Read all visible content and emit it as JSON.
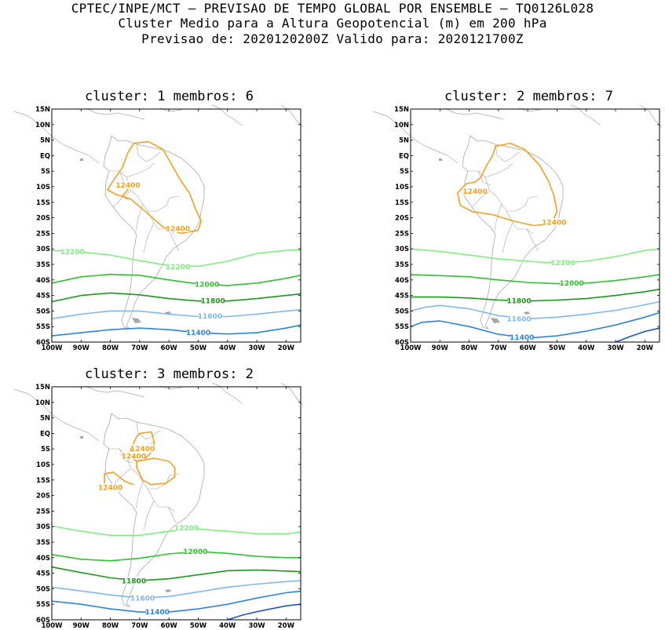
{
  "header": {
    "line1": "CPTEC/INPE/MCT – PREVISAO DE TEMPO GLOBAL POR ENSEMBLE – TQ0126L028",
    "line2": "Cluster Medio para a Altura Geopotencial (m) em 200 hPa",
    "line3": "Previsao de: 2020120200Z   Valido para: 2020121700Z"
  },
  "axes": {
    "lat_labels": [
      "15N",
      "10N",
      "5N",
      "EQ",
      "5S",
      "10S",
      "15S",
      "20S",
      "25S",
      "30S",
      "35S",
      "40S",
      "45S",
      "50S",
      "55S",
      "60S"
    ],
    "lon_labels": [
      "100W",
      "90W",
      "80W",
      "70W",
      "60W",
      "50W",
      "40W",
      "30W",
      "20W"
    ]
  },
  "colors": {
    "c12400": "#f5a020",
    "c12200": "#7ef07e",
    "c12000": "#2ec22e",
    "c11800": "#199a19",
    "c11600": "#7fb8f0",
    "c11400": "#2a84e0",
    "c11200": "#1b56c4",
    "land": "#a8a8a8"
  },
  "panels": [
    {
      "title": "cluster: 1   membros: 6",
      "labels": [
        {
          "text": "12400",
          "lon": -74,
          "lat": -9.5,
          "color": "c12400"
        },
        {
          "text": "12400",
          "lon": -57,
          "lat": -23.5,
          "color": "c12400"
        },
        {
          "text": "12200",
          "lon": -93,
          "lat": -31,
          "color": "c12200"
        },
        {
          "text": "12200",
          "lon": -57,
          "lat": -35.7,
          "color": "c12200"
        },
        {
          "text": "12000",
          "lon": -47,
          "lat": -41.5,
          "color": "c12000"
        },
        {
          "text": "11800",
          "lon": -45,
          "lat": -46.7,
          "color": "c11800"
        },
        {
          "text": "11600",
          "lon": -46,
          "lat": -51.7,
          "color": "c11600"
        },
        {
          "text": "11400",
          "lon": -50,
          "lat": -57,
          "color": "c11400"
        }
      ]
    },
    {
      "title": "cluster: 2   membros: 7",
      "labels": [
        {
          "text": "12400",
          "lon": -78,
          "lat": -11.5,
          "color": "c12400"
        },
        {
          "text": "12400",
          "lon": -51,
          "lat": -21.5,
          "color": "c12400"
        },
        {
          "text": "12200",
          "lon": -48,
          "lat": -34.5,
          "color": "c12200"
        },
        {
          "text": "12000",
          "lon": -45,
          "lat": -41,
          "color": "c12000"
        },
        {
          "text": "11800",
          "lon": -63,
          "lat": -46.7,
          "color": "c11800"
        },
        {
          "text": "11600",
          "lon": -63,
          "lat": -52.5,
          "color": "c11600"
        },
        {
          "text": "11400",
          "lon": -62,
          "lat": -58.5,
          "color": "c11400"
        }
      ]
    },
    {
      "title": "cluster: 3   membros: 2",
      "labels": [
        {
          "text": "12400",
          "lon": -69,
          "lat": -5,
          "color": "c12400"
        },
        {
          "text": "12400",
          "lon": -72,
          "lat": -7.3,
          "color": "c12400"
        },
        {
          "text": "12400",
          "lon": -80,
          "lat": -17.5,
          "color": "c12400"
        },
        {
          "text": "12200",
          "lon": -54,
          "lat": -30.5,
          "color": "c12200"
        },
        {
          "text": "12000",
          "lon": -51,
          "lat": -38,
          "color": "c12000"
        },
        {
          "text": "11800",
          "lon": -72,
          "lat": -47.5,
          "color": "c11800"
        },
        {
          "text": "11600",
          "lon": -69,
          "lat": -53,
          "color": "c11600"
        },
        {
          "text": "11400",
          "lon": -64,
          "lat": -57.5,
          "color": "c11400"
        }
      ]
    }
  ]
}
